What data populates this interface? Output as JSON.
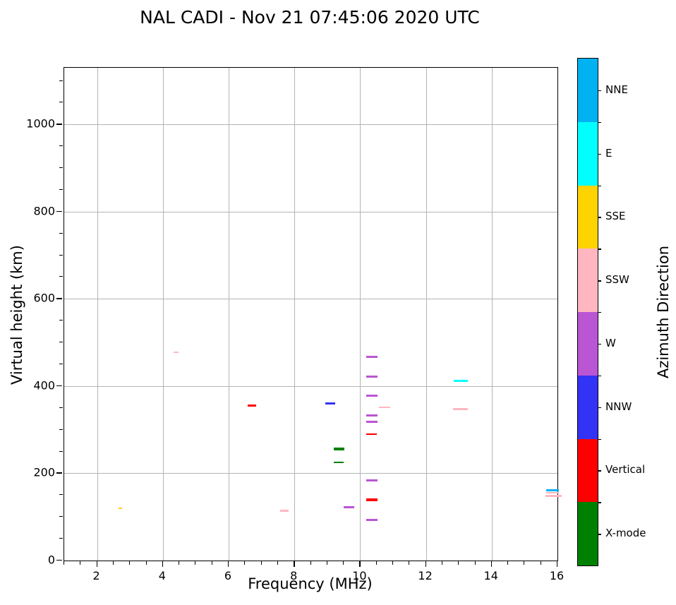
{
  "title": "NAL CADI - Nov 21 07:45:06 2020 UTC",
  "chart_data": {
    "type": "scatter",
    "title": "NAL CADI - Nov 21 07:45:06 2020 UTC",
    "xlabel": "Frequency (MHz)",
    "ylabel": "Virtual height (km)",
    "xlim": [
      1,
      16
    ],
    "ylim": [
      0,
      1130
    ],
    "xticks": [
      2,
      4,
      6,
      8,
      10,
      12,
      14,
      16
    ],
    "yticks": [
      0,
      200,
      400,
      600,
      800,
      1000
    ],
    "x_minor_step": 0.5,
    "y_minor_step": 50,
    "grid": true,
    "marker": "horizontal-dash",
    "legend": {
      "title": "Azimuth Direction",
      "position": "right-colorbar",
      "entries": [
        {
          "label": "NNE",
          "color": "#00b2f2"
        },
        {
          "label": "E",
          "color": "#00ffff"
        },
        {
          "label": "SSE",
          "color": "#ffd300"
        },
        {
          "label": "SSW",
          "color": "#ffb6c1"
        },
        {
          "label": "W",
          "color": "#ba55d3"
        },
        {
          "label": "NNW",
          "color": "#3333f5"
        },
        {
          "label": "Vertical",
          "color": "#ff0000"
        },
        {
          "label": "X-mode",
          "color": "#008000"
        }
      ]
    },
    "points": [
      {
        "x": 2.7,
        "y": 119,
        "direction": "SSE",
        "w": 0.1,
        "thick": 2
      },
      {
        "x": 4.4,
        "y": 478,
        "direction": "SSW",
        "w": 0.14,
        "thick": 2
      },
      {
        "x": 6.7,
        "y": 356,
        "direction": "Vertical",
        "w": 0.26,
        "thick": 3
      },
      {
        "x": 7.7,
        "y": 114,
        "direction": "SSW",
        "w": 0.26,
        "thick": 3
      },
      {
        "x": 9.1,
        "y": 360,
        "direction": "NNW",
        "w": 0.3,
        "thick": 3
      },
      {
        "x": 9.35,
        "y": 255,
        "direction": "X-mode",
        "w": 0.32,
        "thick": 4
      },
      {
        "x": 9.35,
        "y": 225,
        "direction": "X-mode",
        "w": 0.3,
        "thick": 2
      },
      {
        "x": 9.65,
        "y": 122,
        "direction": "W",
        "w": 0.32,
        "thick": 3
      },
      {
        "x": 10.35,
        "y": 467,
        "direction": "W",
        "w": 0.34,
        "thick": 3
      },
      {
        "x": 10.35,
        "y": 422,
        "direction": "W",
        "w": 0.34,
        "thick": 3
      },
      {
        "x": 10.35,
        "y": 378,
        "direction": "W",
        "w": 0.34,
        "thick": 3
      },
      {
        "x": 10.75,
        "y": 351,
        "direction": "SSW",
        "w": 0.34,
        "thick": 2
      },
      {
        "x": 10.35,
        "y": 333,
        "direction": "W",
        "w": 0.34,
        "thick": 3
      },
      {
        "x": 10.35,
        "y": 318,
        "direction": "W",
        "w": 0.34,
        "thick": 3
      },
      {
        "x": 10.35,
        "y": 289,
        "direction": "Vertical",
        "w": 0.32,
        "thick": 2
      },
      {
        "x": 10.35,
        "y": 184,
        "direction": "W",
        "w": 0.34,
        "thick": 3
      },
      {
        "x": 10.35,
        "y": 139,
        "direction": "Vertical",
        "w": 0.34,
        "thick": 4
      },
      {
        "x": 10.35,
        "y": 93,
        "direction": "W",
        "w": 0.34,
        "thick": 3
      },
      {
        "x": 13.05,
        "y": 412,
        "direction": "E",
        "w": 0.43,
        "thick": 3
      },
      {
        "x": 13.05,
        "y": 348,
        "direction": "SSW",
        "w": 0.45,
        "thick": 3
      },
      {
        "x": 15.85,
        "y": 161,
        "direction": "NNE",
        "w": 0.38,
        "thick": 3
      },
      {
        "x": 15.85,
        "y": 156,
        "direction": "SSW",
        "w": 0.38,
        "thick": 2
      },
      {
        "x": 15.88,
        "y": 148,
        "direction": "SSW",
        "w": 0.48,
        "thick": 3
      }
    ]
  }
}
